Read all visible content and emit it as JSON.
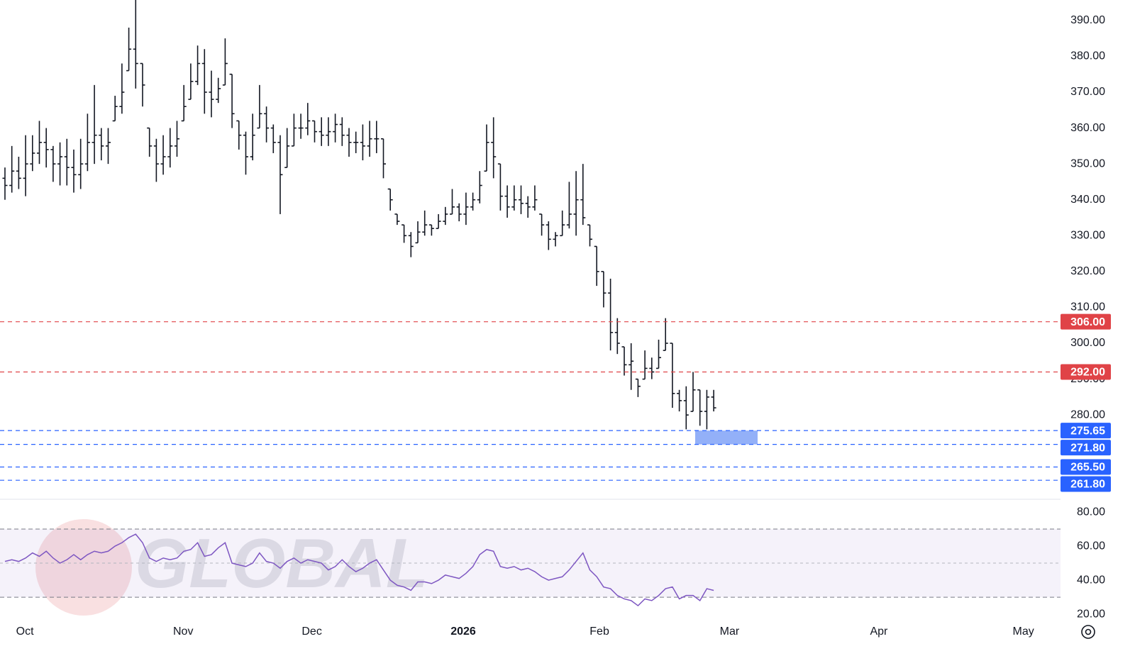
{
  "watermark": "GLOBAL",
  "chart_data": [
    {
      "type": "ohlc",
      "open": [
        346,
        344,
        348,
        346,
        350,
        353,
        356,
        354,
        350,
        352,
        349,
        347,
        350,
        356,
        358,
        355,
        362,
        366,
        376,
        382,
        378,
        360,
        355,
        350,
        352,
        355,
        362,
        368,
        373,
        378,
        370,
        368,
        372,
        375,
        362,
        358,
        352,
        360,
        364,
        360,
        356,
        349,
        355,
        360,
        360,
        362,
        359,
        358,
        359,
        361,
        358,
        356,
        356,
        355,
        357,
        357,
        343,
        336,
        333,
        330,
        328,
        331,
        333,
        332,
        334,
        336,
        338,
        336,
        338,
        340,
        348,
        356,
        350,
        341,
        338,
        340,
        339,
        338,
        336,
        333,
        329,
        330,
        333,
        336,
        340,
        333,
        327,
        320,
        314,
        303,
        299,
        294,
        290,
        290,
        293,
        293,
        298,
        300,
        286,
        284,
        281,
        287,
        281,
        285
      ],
      "high": [
        349,
        355,
        352,
        358,
        358,
        362,
        360,
        355,
        356,
        357,
        354,
        357,
        364,
        372,
        360,
        360,
        369,
        378,
        388,
        396,
        378,
        360,
        357,
        358,
        360,
        362,
        372,
        378,
        383,
        382,
        376,
        374,
        385,
        375,
        362,
        359,
        364,
        372,
        366,
        361,
        358,
        360,
        364,
        364,
        367,
        362,
        363,
        363,
        364,
        363,
        360,
        359,
        361,
        362,
        362,
        357,
        343,
        336,
        333,
        331,
        334,
        337,
        333,
        336,
        338,
        343,
        339,
        342,
        342,
        348,
        361,
        363,
        350,
        344,
        344,
        344,
        341,
        344,
        336,
        334,
        331,
        337,
        345,
        348,
        350,
        333,
        327,
        320,
        318,
        307,
        299,
        300,
        290,
        298,
        296,
        301,
        307,
        300,
        287,
        288,
        292,
        287,
        287,
        287
      ],
      "low": [
        340,
        342,
        343,
        341,
        348,
        350,
        349,
        345,
        344,
        344,
        342,
        343,
        348,
        350,
        351,
        350,
        362,
        364,
        376,
        371,
        366,
        352,
        345,
        347,
        349,
        352,
        362,
        368,
        372,
        364,
        363,
        367,
        372,
        360,
        354,
        347,
        351,
        360,
        356,
        353,
        336,
        349,
        355,
        357,
        358,
        356,
        355,
        355,
        356,
        355,
        352,
        353,
        351,
        352,
        353,
        346,
        337,
        333,
        328,
        324,
        328,
        330,
        330,
        332,
        333,
        336,
        334,
        333,
        337,
        339,
        348,
        346,
        337,
        335,
        337,
        336,
        335,
        337,
        330,
        326,
        327,
        330,
        332,
        330,
        333,
        327,
        316,
        310,
        298,
        297,
        291,
        287,
        285,
        290,
        290,
        293,
        298,
        282,
        281,
        276,
        281,
        277,
        276,
        281
      ],
      "close": [
        344,
        348,
        346,
        350,
        353,
        356,
        354,
        350,
        352,
        349,
        347,
        350,
        356,
        358,
        355,
        356,
        366,
        370,
        382,
        378,
        372,
        355,
        350,
        352,
        355,
        357,
        366,
        373,
        378,
        370,
        368,
        371,
        378,
        364,
        358,
        352,
        358,
        364,
        360,
        356,
        347,
        355,
        360,
        360,
        362,
        359,
        358,
        359,
        361,
        358,
        356,
        356,
        355,
        357,
        357,
        350,
        340,
        334,
        330,
        327,
        331,
        333,
        332,
        334,
        336,
        338,
        336,
        338,
        340,
        344,
        356,
        352,
        341,
        338,
        340,
        339,
        338,
        340,
        333,
        329,
        330,
        333,
        336,
        340,
        335,
        329,
        320,
        314,
        303,
        300,
        294,
        295,
        288,
        293,
        292,
        296,
        300,
        286,
        284,
        280,
        287,
        281,
        285,
        282
      ],
      "color": "#131722",
      "ylim": [
        256.7,
        395.7
      ],
      "yticks": [
        {
          "value": 280,
          "label": "280.00"
        },
        {
          "value": 290,
          "label": "290.00"
        },
        {
          "value": 300,
          "label": "300.00"
        },
        {
          "value": 310,
          "label": "310.00"
        },
        {
          "value": 320,
          "label": "320.00"
        },
        {
          "value": 330,
          "label": "330.00"
        },
        {
          "value": 340,
          "label": "340.00"
        },
        {
          "value": 350,
          "label": "350.00"
        },
        {
          "value": 360,
          "label": "360.00"
        },
        {
          "value": 370,
          "label": "370.00"
        },
        {
          "value": 380,
          "label": "380.00"
        },
        {
          "value": 390,
          "label": "390.00"
        }
      ],
      "levels": [
        {
          "value": 306,
          "label": "306.00",
          "color": "#e04347"
        },
        {
          "value": 292,
          "label": "292.00",
          "color": "#e04347"
        },
        {
          "value": 275.65,
          "label": "275.65",
          "color": "#2962ff"
        },
        {
          "value": 271.8,
          "label": "271.80",
          "color": "#2962ff"
        },
        {
          "value": 265.5,
          "label": "265.50",
          "color": "#2962ff"
        },
        {
          "value": 261.8,
          "label": "261.80",
          "color": "#2962ff"
        }
      ],
      "xlim": [
        -0.72,
        153.4
      ],
      "xticks": [
        {
          "value": 2.9,
          "label": "Oct"
        },
        {
          "value": 25.9,
          "label": "Nov"
        },
        {
          "value": 44.6,
          "label": "Dec"
        },
        {
          "value": 66.6,
          "label": "2026"
        },
        {
          "value": 86.4,
          "label": "Feb"
        },
        {
          "value": 105.3,
          "label": "Mar"
        },
        {
          "value": 127,
          "label": "Apr"
        },
        {
          "value": 148,
          "label": "May"
        }
      ]
    },
    {
      "type": "line",
      "values": [
        51,
        52,
        51,
        53,
        56,
        54,
        57,
        53,
        50,
        52,
        55,
        52,
        55,
        57,
        56,
        57,
        60,
        62,
        65,
        67,
        62,
        53,
        51,
        53,
        52,
        53,
        57,
        58,
        62,
        54,
        55,
        59,
        62,
        50,
        49,
        48,
        50,
        56,
        51,
        50,
        47,
        51,
        53,
        50,
        52,
        51,
        50,
        46,
        48,
        52,
        48,
        45,
        47,
        50,
        52,
        46,
        40,
        37,
        36,
        34,
        39,
        39,
        38,
        40,
        43,
        42,
        41,
        44,
        48,
        55,
        58,
        57,
        48,
        47,
        48,
        46,
        47,
        45,
        42,
        40,
        41,
        42,
        46,
        51,
        56,
        46,
        42,
        36,
        35,
        31,
        29,
        28,
        25,
        29,
        28,
        31,
        35,
        36,
        29,
        31,
        31,
        28,
        35,
        34
      ],
      "color": "#7e57c2",
      "ylim": [
        14.2,
        87.1
      ],
      "yticks": [
        {
          "value": 20,
          "label": "20.00"
        },
        {
          "value": 40,
          "label": "40.00"
        },
        {
          "value": 60,
          "label": "60.00"
        },
        {
          "value": 80,
          "label": "80.00"
        }
      ],
      "bands": [
        30,
        70
      ],
      "midline": 50
    }
  ]
}
